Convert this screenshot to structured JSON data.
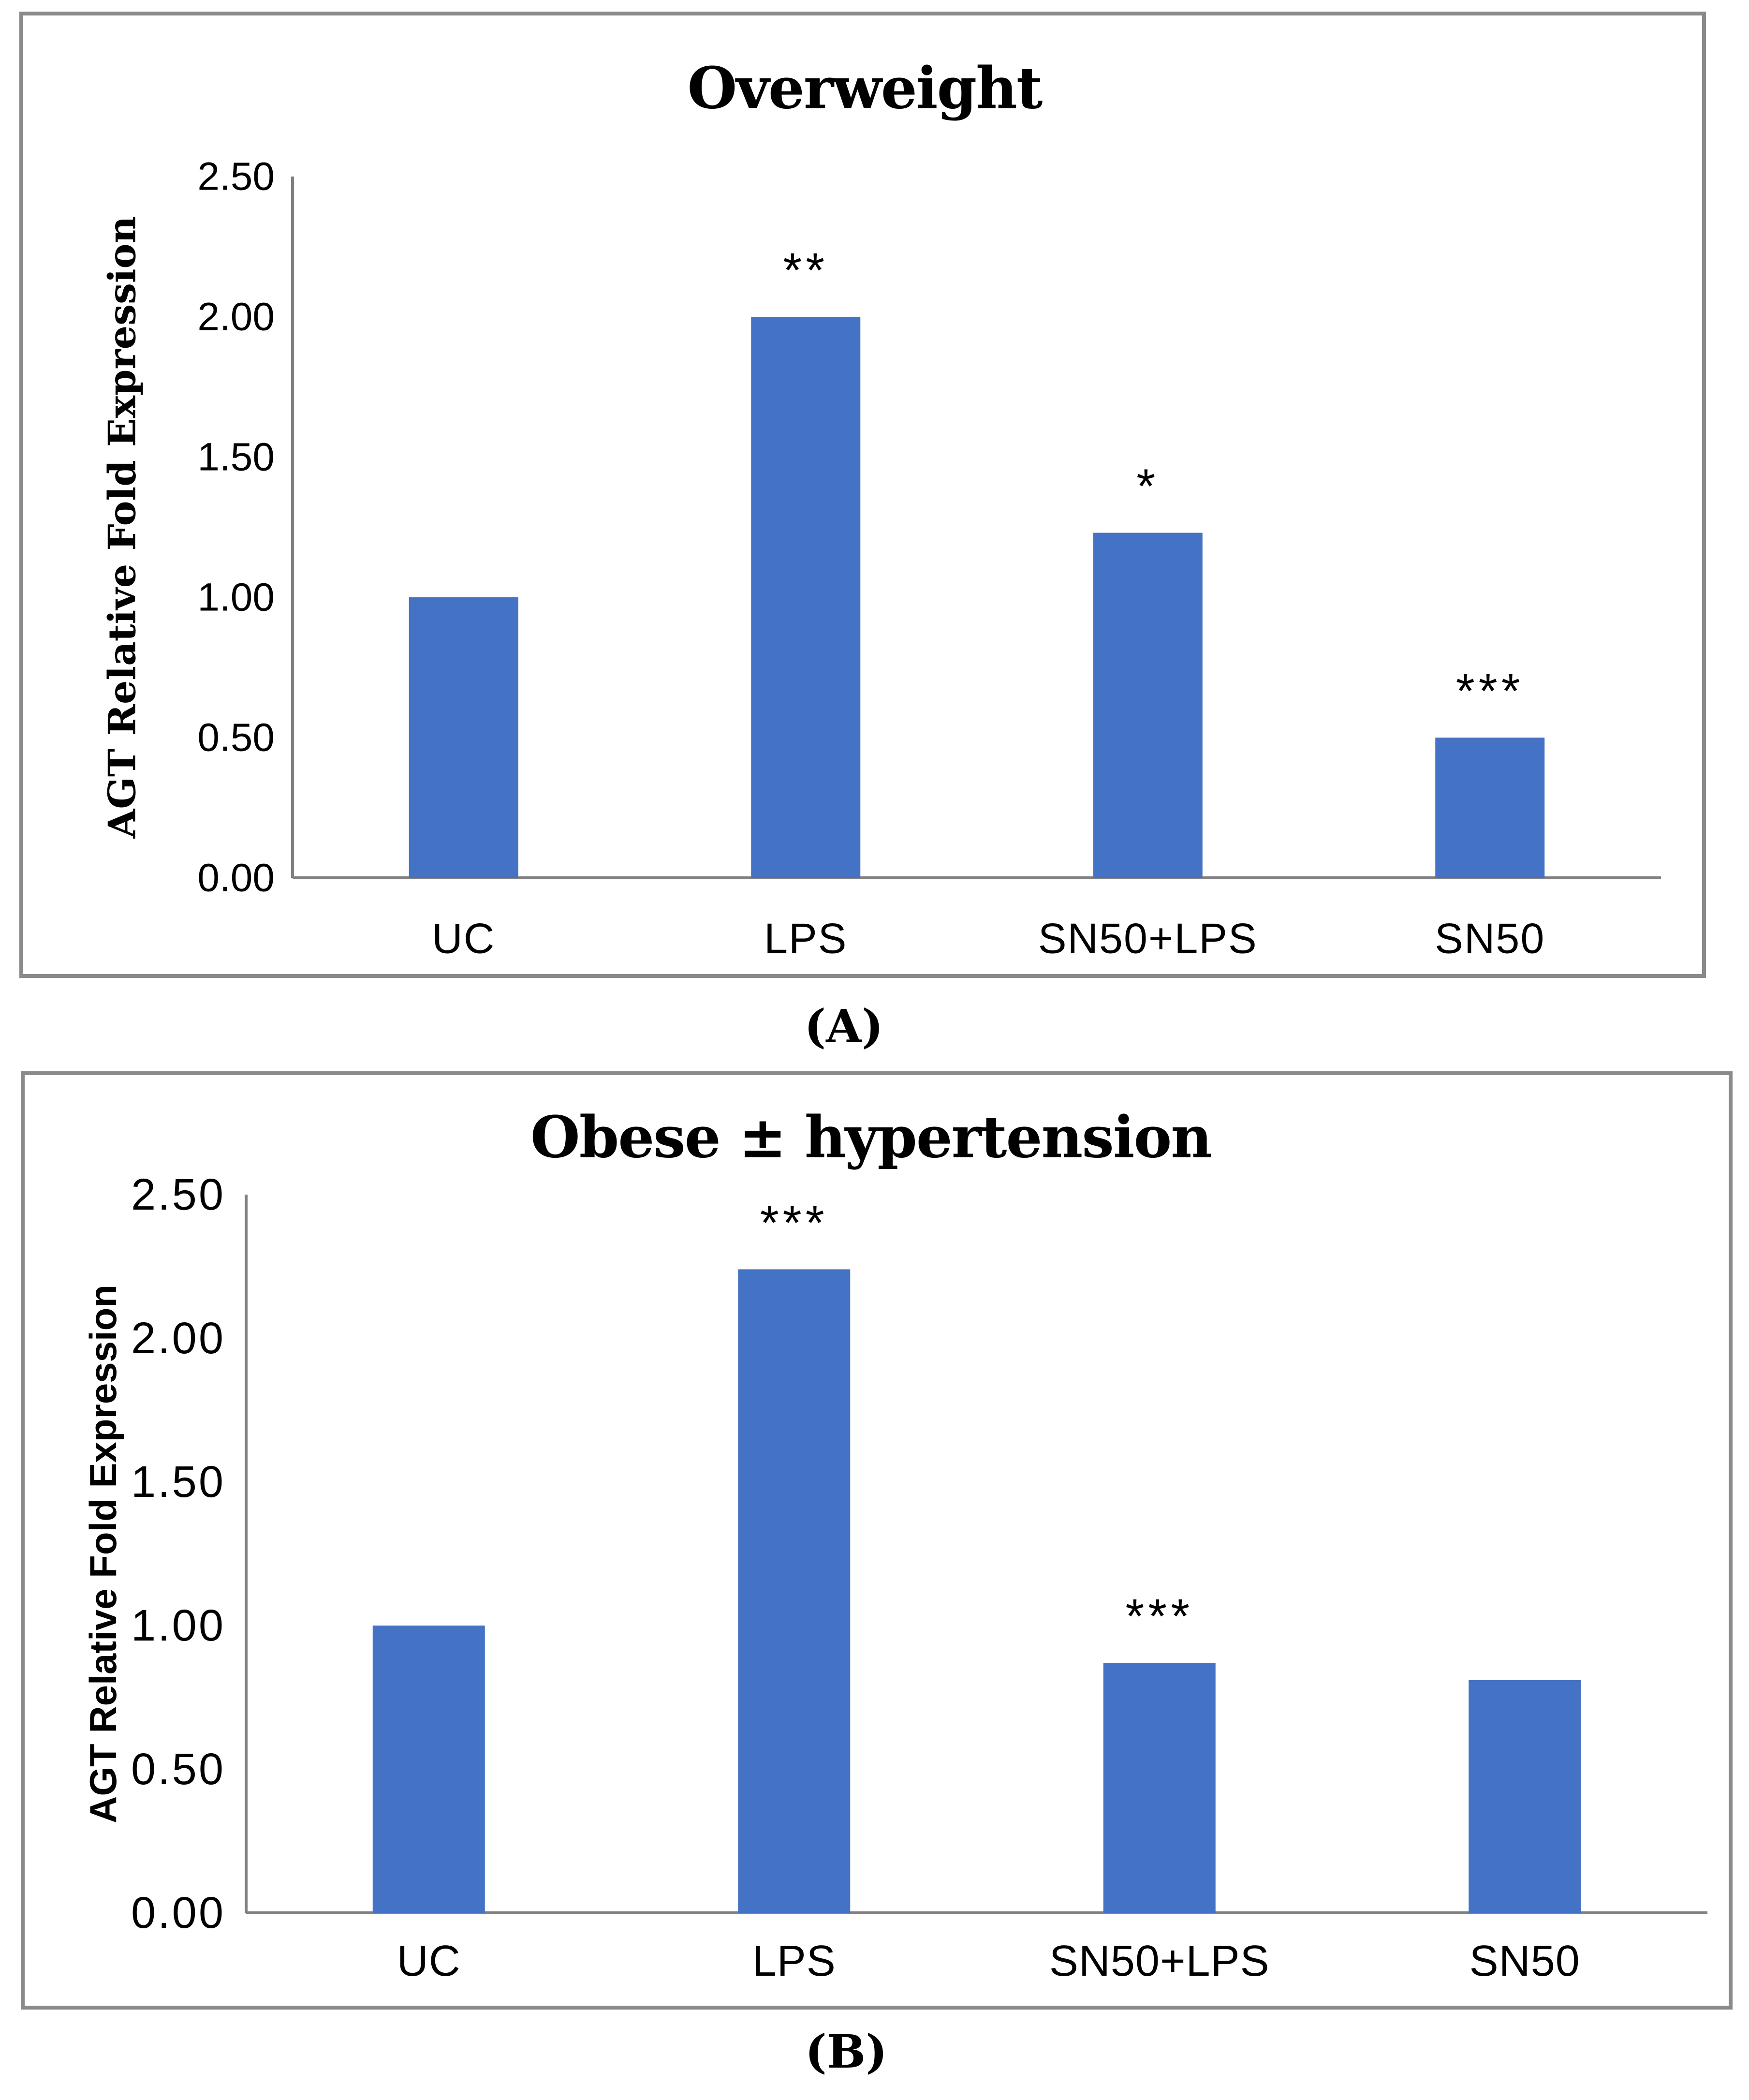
{
  "figure": {
    "background_color": "#ffffff",
    "panel_border_color": "#8a8a8a"
  },
  "panels": [
    {
      "caption": "(A)"
    },
    {
      "caption": "(B)"
    }
  ],
  "chart_data": [
    {
      "type": "bar",
      "title": "Overweight",
      "ylabel": "AGT Relative Fold Expression",
      "xlabel": "",
      "categories": [
        "UC",
        "LPS",
        "SN50+LPS",
        "SN50"
      ],
      "values": [
        1.0,
        2.0,
        1.23,
        0.5
      ],
      "significance": [
        "",
        "**",
        "*",
        "***"
      ],
      "yticks": [
        0.0,
        0.5,
        1.0,
        1.5,
        2.0,
        2.5
      ],
      "ytick_labels": [
        "0.00",
        "0.50",
        "1.00",
        "1.50",
        "2.00",
        "2.50"
      ],
      "ylim": [
        0,
        2.5
      ],
      "grid": false,
      "legend": null,
      "bar_color": "#4472C4",
      "axis_color": "#808080",
      "text_color": "#000000"
    },
    {
      "type": "bar",
      "title": "Obese ± hypertension",
      "ylabel": "AGT Relative Fold Expression",
      "xlabel": "",
      "categories": [
        "UC",
        "LPS",
        "SN50+LPS",
        "SN50"
      ],
      "values": [
        1.0,
        2.24,
        0.87,
        0.81
      ],
      "significance": [
        "",
        "***",
        "***",
        ""
      ],
      "yticks": [
        0.0,
        0.5,
        1.0,
        1.5,
        2.0,
        2.5
      ],
      "ytick_labels": [
        "0.00",
        "0.50",
        "1.00",
        "1.50",
        "2.00",
        "2.50"
      ],
      "ylim": [
        0,
        2.5
      ],
      "grid": false,
      "legend": null,
      "bar_color": "#4472C4",
      "axis_color": "#808080",
      "text_color": "#000000"
    }
  ]
}
